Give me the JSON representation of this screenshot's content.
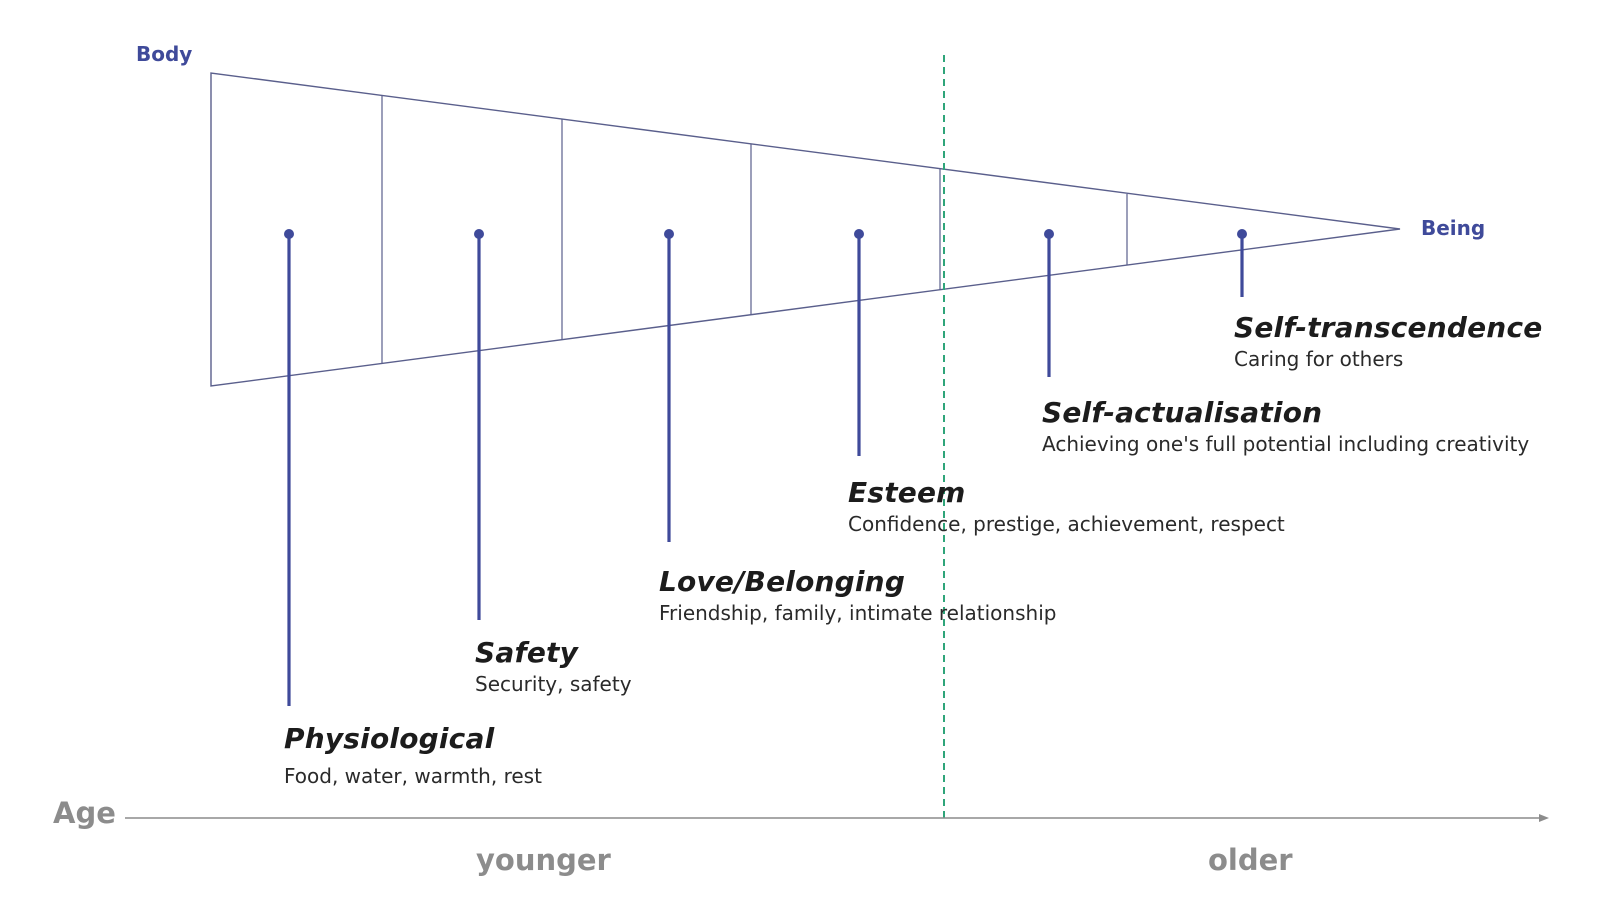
{
  "labels": {
    "body": "Body",
    "being": "Being"
  },
  "stages": [
    {
      "title": "Physiological",
      "description": "Food, water, warmth, rest"
    },
    {
      "title": "Safety",
      "description": "Security, safety"
    },
    {
      "title": "Love/Belonging",
      "description": "Friendship, family, intimate relationship"
    },
    {
      "title": "Esteem",
      "description": "Confidence, prestige, achievement, respect"
    },
    {
      "title": "Self-actualisation",
      "description": "Achieving one's full potential including creativity"
    },
    {
      "title": "Self-transcendence",
      "description": "Caring for others"
    }
  ],
  "axis": {
    "title": "Age",
    "start_label": "younger",
    "end_label": "older"
  },
  "colors": {
    "wedge_outline": "#5a5f8c",
    "stage_marker": "#3f4a9a",
    "divider_dashed": "#2fa57a",
    "axis_text": "#8c8c8c"
  }
}
